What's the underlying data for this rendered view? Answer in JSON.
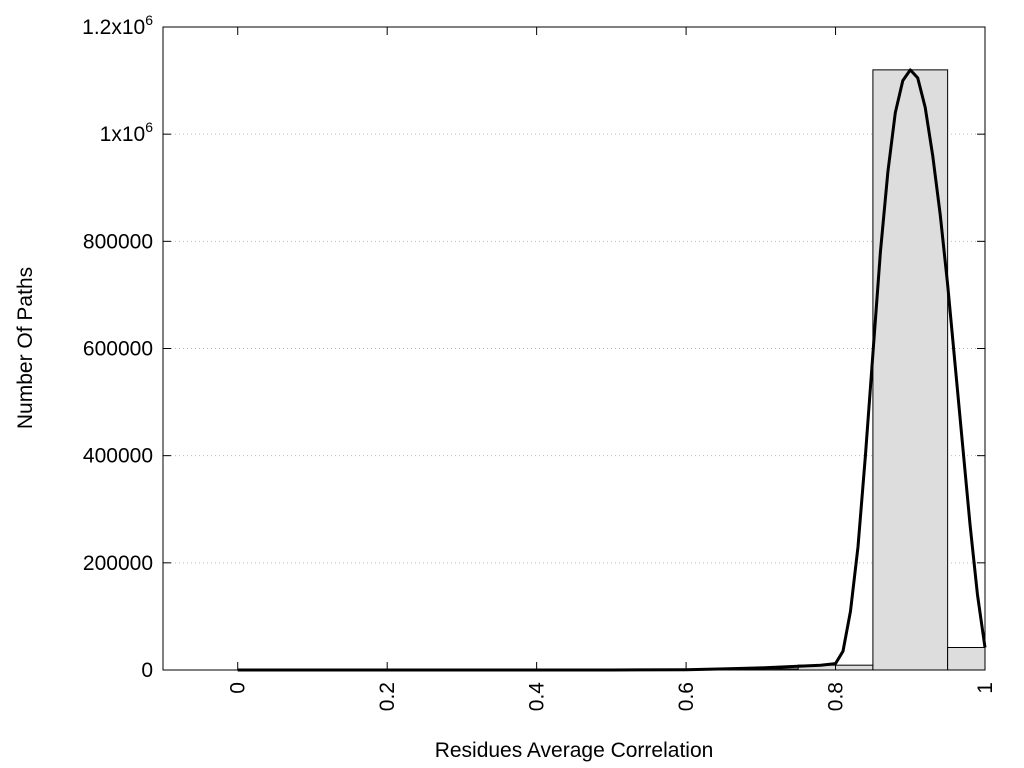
{
  "chart_data": {
    "type": "bar",
    "title": "",
    "xlabel": "Residues Average Correlation",
    "ylabel": "Number Of Paths",
    "xlim": [
      -0.1,
      1.0
    ],
    "ylim": [
      0,
      1200000
    ],
    "grid": {
      "y": true,
      "x": false,
      "style": "dotted"
    },
    "x_ticks": [
      {
        "value": 0,
        "label": "0"
      },
      {
        "value": 0.2,
        "label": "0.2"
      },
      {
        "value": 0.4,
        "label": "0.4"
      },
      {
        "value": 0.6,
        "label": "0.6"
      },
      {
        "value": 0.8,
        "label": "0.8"
      },
      {
        "value": 1.0,
        "label": "1"
      }
    ],
    "y_ticks": [
      {
        "value": 0,
        "label": "0"
      },
      {
        "value": 200000,
        "label": "200000"
      },
      {
        "value": 400000,
        "label": "400000"
      },
      {
        "value": 600000,
        "label": "600000"
      },
      {
        "value": 800000,
        "label": "800000"
      },
      {
        "value": 1000000,
        "label": "1x10",
        "sup": "6"
      },
      {
        "value": 1200000,
        "label": "1.2x10",
        "sup": "6"
      }
    ],
    "bins": [
      {
        "x0": -0.05,
        "x1": 0.05,
        "value": 0
      },
      {
        "x0": 0.05,
        "x1": 0.15,
        "value": 0
      },
      {
        "x0": 0.15,
        "x1": 0.25,
        "value": 0
      },
      {
        "x0": 0.25,
        "x1": 0.35,
        "value": 0
      },
      {
        "x0": 0.35,
        "x1": 0.45,
        "value": 0
      },
      {
        "x0": 0.45,
        "x1": 0.55,
        "value": 0
      },
      {
        "x0": 0.55,
        "x1": 0.65,
        "value": 500
      },
      {
        "x0": 0.65,
        "x1": 0.75,
        "value": 2000
      },
      {
        "x0": 0.75,
        "x1": 0.85,
        "value": 9000
      },
      {
        "x0": 0.85,
        "x1": 0.95,
        "value": 1120000
      },
      {
        "x0": 0.95,
        "x1": 1.0,
        "value": 42000
      }
    ],
    "bar_fill": "#dddddd",
    "bar_stroke": "#000000",
    "curve": {
      "x": [
        0,
        0.1,
        0.2,
        0.3,
        0.4,
        0.5,
        0.6,
        0.65,
        0.7,
        0.75,
        0.78,
        0.8,
        0.81,
        0.82,
        0.83,
        0.84,
        0.85,
        0.86,
        0.87,
        0.88,
        0.89,
        0.9,
        0.91,
        0.92,
        0.93,
        0.94,
        0.95,
        0.96,
        0.97,
        0.98,
        0.99,
        1.0
      ],
      "y": [
        0,
        0,
        0,
        0,
        0,
        0,
        500,
        2000,
        4000,
        7000,
        9000,
        12000,
        35000,
        110000,
        230000,
        400000,
        590000,
        780000,
        930000,
        1040000,
        1100000,
        1120000,
        1105000,
        1050000,
        960000,
        850000,
        720000,
        570000,
        420000,
        270000,
        140000,
        42000
      ]
    },
    "curve_color": "#000000"
  }
}
